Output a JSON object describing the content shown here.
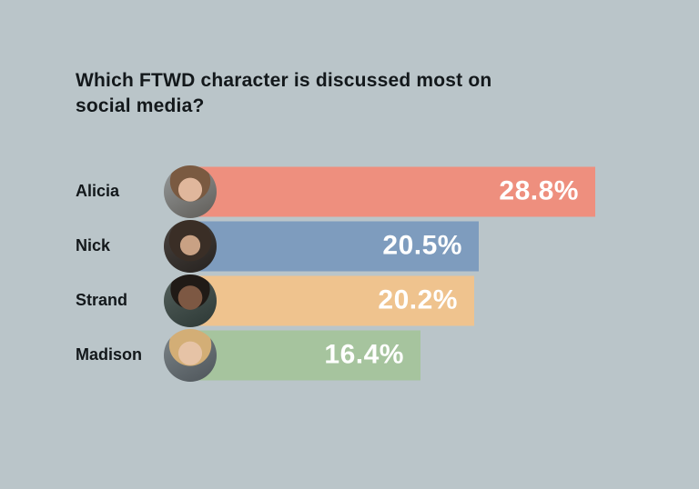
{
  "title": "Which FTWD character is discussed most on social media?",
  "colors": {
    "background": "#bac5c9",
    "text": "#13181b",
    "value_text": "#ffffff"
  },
  "chart_data": {
    "type": "bar",
    "orientation": "horizontal",
    "title": "Which FTWD character is discussed most on social media?",
    "categories": [
      "Alicia",
      "Nick",
      "Strand",
      "Madison"
    ],
    "values": [
      28.8,
      20.5,
      20.2,
      16.4
    ],
    "unit": "%",
    "xlim": [
      0,
      30
    ],
    "grid": false,
    "legend": "none",
    "bar_colors": [
      "#ee8f7e",
      "#7e9cbe",
      "#efc38e",
      "#a6c49e"
    ],
    "rows": [
      {
        "label": "Alicia",
        "value": 28.8,
        "value_label": "28.8%",
        "color": "#ee8f7e",
        "avatar": "alicia-photo"
      },
      {
        "label": "Nick",
        "value": 20.5,
        "value_label": "20.5%",
        "color": "#7e9cbe",
        "avatar": "nick-photo"
      },
      {
        "label": "Strand",
        "value": 20.2,
        "value_label": "20.2%",
        "color": "#efc38e",
        "avatar": "strand-photo"
      },
      {
        "label": "Madison",
        "value": 16.4,
        "value_label": "16.4%",
        "color": "#a6c49e",
        "avatar": "madison-photo"
      }
    ]
  }
}
